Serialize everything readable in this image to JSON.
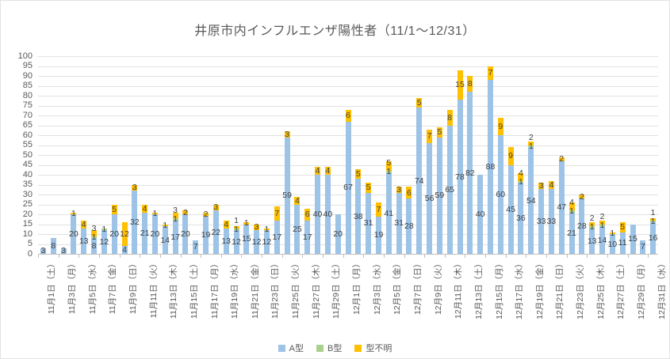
{
  "chart_data": {
    "type": "bar",
    "stacked": true,
    "title": "井原市内インフルエンザ陽性者（11/1～12/31）",
    "categories": [
      "11月1日（土）",
      "11月2日（日）",
      "11月3日（月）",
      "11月4日（火）",
      "11月5日（水）",
      "11月6日（木）",
      "11月7日（金）",
      "11月8日（土）",
      "11月9日（日）",
      "11月10日（月）",
      "11月11日（火）",
      "11月12日（水）",
      "11月13日（木）",
      "11月14日（金）",
      "11月15日（土）",
      "11月16日（日）",
      "11月17日（月）",
      "11月18日（火）",
      "11月19日（水）",
      "11月20日（木）",
      "11月21日（金）",
      "11月22日（土）",
      "11月23日（日）",
      "11月24日（月）",
      "11月25日（火）",
      "11月26日（水）",
      "11月27日（木）",
      "11月28日（金）",
      "11月29日（土）",
      "11月30日（日）",
      "12月1日（月）",
      "12月2日（火）",
      "12月3日（水）",
      "12月4日（木）",
      "12月5日（金）",
      "12月6日（土）",
      "12月7日（日）",
      "12月8日（月）",
      "12月9日（火）",
      "12月10日（水）",
      "12月11日（木）",
      "12月12日（金）",
      "12月13日（土）",
      "12月14日（日）",
      "12月15日（月）",
      "12月16日（火）",
      "12月17日（水）",
      "12月18日（木）",
      "12月19日（金）",
      "12月20日（土）",
      "12月21日（日）",
      "12月22日（月）",
      "12月23日（火）",
      "12月24日（水）",
      "12月25日（木）",
      "12月26日（金）",
      "12月27日（土）",
      "12月28日（日）",
      "12月29日（月）",
      "12月30日（火）",
      "12月31日（水）"
    ],
    "x_label_interval": 2,
    "series": [
      {
        "name": "A型",
        "color": "#9dc3e6",
        "values": [
          3,
          8,
          3,
          20,
          13,
          8,
          12,
          20,
          4,
          32,
          21,
          20,
          14,
          17,
          20,
          7,
          19,
          22,
          13,
          12,
          15,
          12,
          12,
          17,
          59,
          25,
          17,
          40,
          40,
          20,
          67,
          38,
          31,
          19,
          41,
          31,
          28,
          74,
          56,
          59,
          65,
          78,
          82,
          40,
          88,
          60,
          45,
          36,
          54,
          33,
          33,
          47,
          21,
          28,
          13,
          14,
          10,
          11,
          15,
          7,
          16
        ]
      },
      {
        "name": "B型",
        "color": "#a9d18e",
        "values": [
          0,
          0,
          0,
          0,
          0,
          1,
          1,
          0,
          0,
          0,
          0,
          0,
          0,
          1,
          0,
          0,
          0,
          0,
          0,
          1,
          0,
          0,
          0,
          0,
          0,
          0,
          0,
          0,
          0,
          0,
          0,
          0,
          0,
          0,
          1,
          0,
          0,
          0,
          0,
          0,
          0,
          0,
          0,
          0,
          0,
          0,
          0,
          1,
          1,
          0,
          0,
          0,
          1,
          0,
          1,
          1,
          0,
          0,
          0,
          0,
          1
        ]
      },
      {
        "name": "型不明",
        "color": "#ffc000",
        "values": [
          0,
          0,
          0,
          1,
          4,
          3,
          0,
          5,
          12,
          3,
          4,
          1,
          1,
          3,
          2,
          0,
          2,
          3,
          4,
          1,
          1,
          3,
          1,
          7,
          3,
          4,
          6,
          4,
          4,
          0,
          6,
          5,
          5,
          7,
          5,
          3,
          6,
          5,
          7,
          5,
          8,
          15,
          8,
          0,
          7,
          9,
          9,
          4,
          2,
          3,
          4,
          2,
          4,
          2,
          2,
          2,
          1,
          5,
          0,
          0,
          1
        ]
      }
    ],
    "ylim": [
      0,
      100
    ],
    "yticks": [
      0,
      5,
      10,
      15,
      20,
      25,
      30,
      35,
      40,
      45,
      50,
      55,
      60,
      65,
      70,
      75,
      80,
      85,
      90,
      95,
      100
    ],
    "grid": true,
    "data_labels": true,
    "legend_position": "bottom",
    "legend": [
      "A型",
      "B型",
      "型不明"
    ]
  },
  "colors": {
    "title_text": "#595959",
    "axis_text": "#595959",
    "data_label_text": "#404040",
    "gridline": "#e2e2e2",
    "axis_line": "#bfbfbf"
  }
}
